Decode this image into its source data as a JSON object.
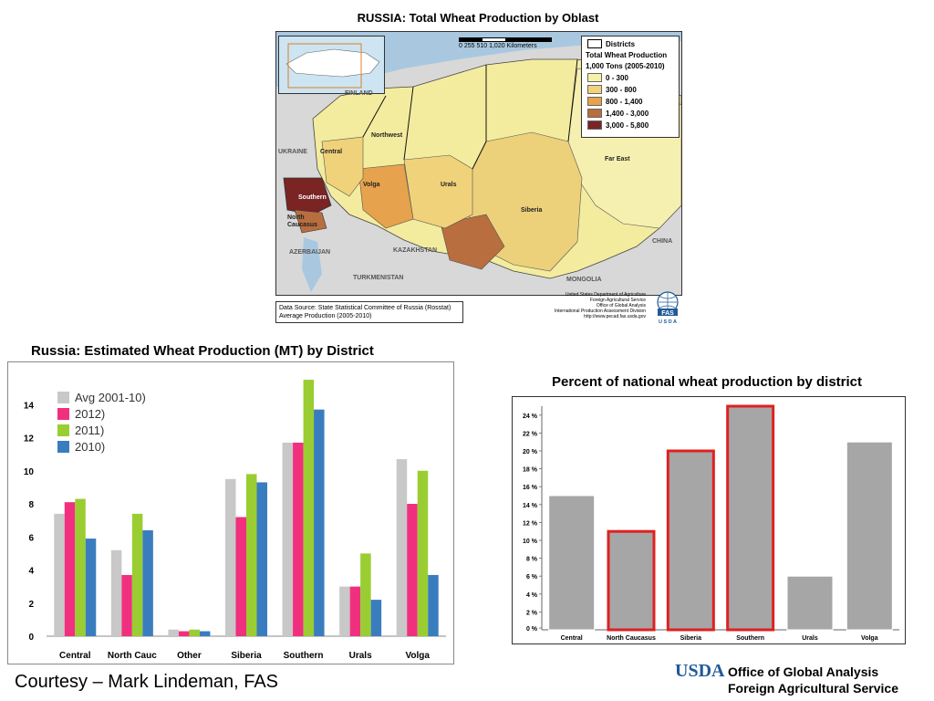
{
  "map": {
    "title": "RUSSIA:  Total Wheat Production by Oblast",
    "scale_label": "0   255  510         1,020 Kilometers",
    "legend_districts": "Districts",
    "legend_title_1": "Total Wheat Production",
    "legend_title_2": "1,000 Tons (2005-2010)",
    "legend_items": [
      {
        "label": "0 - 300",
        "color": "#f6f0a8"
      },
      {
        "label": "300 - 800",
        "color": "#f0d27a"
      },
      {
        "label": "800 - 1,400",
        "color": "#e6a24c"
      },
      {
        "label": "1,400 - 3,000",
        "color": "#b86e3e"
      },
      {
        "label": "3,000 - 5,800",
        "color": "#7a2424"
      }
    ],
    "district_labels": {
      "northwest": "Northwest",
      "central": "Central",
      "volga": "Volga",
      "southern": "Southern",
      "north_caucasus": "North Caucasus",
      "urals": "Urals",
      "siberia": "Siberia",
      "far_east": "Far East"
    },
    "country_labels": {
      "finland": "FINLAND",
      "ukraine": "UKRAINE",
      "kazakhstan": "KAZAKHSTAN",
      "china": "CHINA",
      "mongolia": "MONGOLIA",
      "azerbaijan": "AZERBAIJAN",
      "turkmenistan": "TURKMENISTAN"
    },
    "data_source_1": "Data Source: State Statistical Committee of Russia (Rosstat)",
    "data_source_2": "Average Production (2005-2010)",
    "credit_lines": [
      "United States Department of Agriculture",
      "Foreign Agricultural Service",
      "Office of Global Analysis",
      "International Production Assessment Division",
      "http://www.pecad.fas.usda.gov"
    ],
    "seal_fas": "FAS",
    "seal_usda": "U S D A"
  },
  "chart_data": [
    {
      "type": "bar",
      "title": "Russia: Estimated Wheat Production (MT)  by District",
      "categories": [
        "Central",
        "North Cauc",
        "Other",
        "Siberia",
        "Southern",
        "Urals",
        "Volga"
      ],
      "series": [
        {
          "name": "Avg 2001-10)",
          "color": "#c8c8c8",
          "values": [
            7.4,
            5.2,
            0.4,
            9.5,
            11.7,
            3.0,
            10.7
          ]
        },
        {
          "name": "2012)",
          "color": "#f0307e",
          "values": [
            8.1,
            3.7,
            0.3,
            7.2,
            11.7,
            3.0,
            8.0
          ]
        },
        {
          "name": "2011)",
          "color": "#9acd32",
          "values": [
            8.3,
            7.4,
            0.4,
            9.8,
            15.5,
            5.0,
            10.0
          ]
        },
        {
          "name": "2010)",
          "color": "#3a7dbf",
          "values": [
            5.9,
            6.4,
            0.3,
            9.3,
            13.7,
            2.2,
            3.7
          ]
        }
      ],
      "yticks": [
        0,
        2,
        4,
        6,
        8,
        10,
        12,
        14
      ],
      "ylim": [
        0,
        16
      ],
      "legend": "top-left",
      "grid": false
    },
    {
      "type": "bar",
      "title": "Percent of national wheat production by district",
      "categories": [
        "Central",
        "North Caucasus",
        "Siberia",
        "Southern",
        "Urals",
        "Volga"
      ],
      "values": [
        15,
        11,
        20,
        25,
        6,
        21
      ],
      "highlighted": [
        false,
        true,
        true,
        true,
        false,
        false
      ],
      "bar_color": "#a6a6a6",
      "highlight_color": "#e02020",
      "yticks": [
        "0 %",
        "2 %",
        "4 %",
        "6 %",
        "8 %",
        "10 %",
        "12 %",
        "14 %",
        "16 %",
        "18 %",
        "20 %",
        "22 %",
        "24 %"
      ],
      "ylim": [
        0,
        25
      ],
      "grid": false
    }
  ],
  "footer": {
    "courtesy": "Courtesy – Mark Lindeman, FAS",
    "usda": "USDA",
    "office_line1": "Office of Global Analysis",
    "office_line2": "Foreign Agricultural Service"
  }
}
